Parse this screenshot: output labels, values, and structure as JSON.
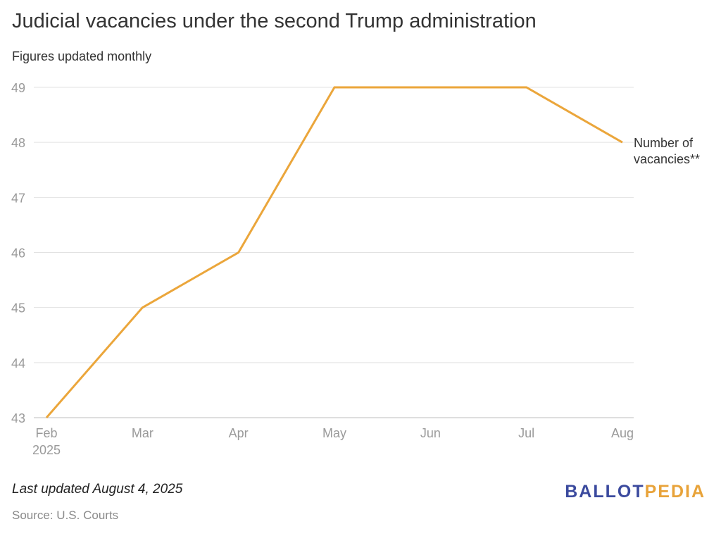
{
  "title": "Judicial vacancies under the second Trump administration",
  "subtitle": "Figures updated monthly",
  "note": "Last updated August 4, 2025",
  "source": "Source: U.S. Courts",
  "logo": {
    "part1": "BALLOT",
    "part2": "PEDIA",
    "color1": "#3b4a9e",
    "color2": "#e8a33a"
  },
  "chart_data": {
    "type": "line",
    "categories": [
      "Feb",
      "Mar",
      "Apr",
      "May",
      "Jun",
      "Jul",
      "Aug"
    ],
    "category_sublabels": [
      "2025",
      "",
      "",
      "",
      "",
      "",
      ""
    ],
    "series": [
      {
        "name": "Number of vacancies**",
        "values": [
          43,
          45,
          46,
          49,
          49,
          49,
          48
        ],
        "color": "#eba63b"
      }
    ],
    "series_label_lines": [
      "Number of",
      "vacancies**"
    ],
    "yticks": [
      43,
      44,
      45,
      46,
      47,
      48,
      49
    ],
    "ylim": [
      43,
      49
    ],
    "grid": true,
    "legend": "direct label at end of line"
  }
}
